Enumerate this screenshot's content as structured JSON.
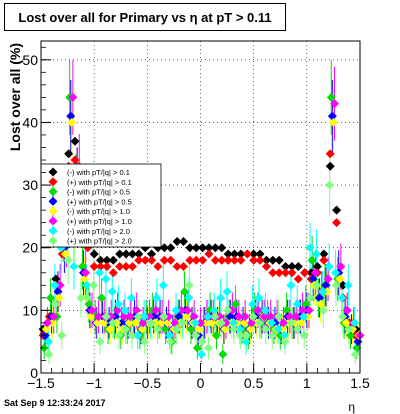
{
  "title": "Lost over all for Primary vs   η at pT > 0.11",
  "timestamp": "Sat Sep  9 12:33:24 2017",
  "chart_data": {
    "type": "scatter",
    "title": "Lost over all for Primary vs   η at pT > 0.11",
    "xlabel": "η",
    "ylabel": "Lost over all (%)",
    "xlim": [
      -1.5,
      1.5
    ],
    "ylim": [
      0,
      53
    ],
    "xticks": [
      -1.5,
      -1,
      -0.5,
      0,
      0.5,
      1,
      1.5
    ],
    "xtick_labels": [
      "−1.5",
      "−1",
      "−0.5",
      "0",
      "0.5",
      "1",
      "1.5"
    ],
    "yticks": [
      0,
      10,
      20,
      30,
      40,
      50
    ],
    "grid": true,
    "legend_position": "upper-left",
    "series": [
      {
        "name": "(-) with pT/|q| > 0.1",
        "color": "#000000",
        "marker": "diamond",
        "errors": false,
        "x": [
          -1.48,
          -1.42,
          -1.36,
          -1.3,
          -1.24,
          -1.18,
          -1.12,
          -1.06,
          -1.0,
          -0.94,
          -0.88,
          -0.82,
          -0.76,
          -0.7,
          -0.64,
          -0.58,
          -0.52,
          -0.46,
          -0.4,
          -0.34,
          -0.28,
          -0.22,
          -0.16,
          -0.1,
          -0.04,
          0.02,
          0.08,
          0.14,
          0.2,
          0.26,
          0.32,
          0.38,
          0.44,
          0.5,
          0.56,
          0.62,
          0.68,
          0.74,
          0.8,
          0.86,
          0.92,
          0.98,
          1.04,
          1.1,
          1.16,
          1.22,
          1.28,
          1.34,
          1.4,
          1.46
        ],
        "y": [
          7,
          9,
          15,
          21,
          35,
          37,
          27,
          22,
          19,
          18,
          18,
          18,
          19,
          19,
          19,
          19,
          20,
          19,
          20,
          20,
          20,
          21,
          21,
          20,
          20,
          20,
          20,
          20,
          20,
          19,
          19,
          19,
          19,
          19,
          19,
          18,
          18,
          18,
          17,
          17,
          17,
          16,
          16,
          17,
          19,
          33,
          26,
          14,
          8,
          7
        ]
      },
      {
        "name": "(+) with pT/|q| > 0.1",
        "color": "#ff0000",
        "marker": "diamond",
        "errors": false,
        "x": [
          -1.48,
          -1.42,
          -1.36,
          -1.3,
          -1.24,
          -1.18,
          -1.12,
          -1.06,
          -1.0,
          -0.94,
          -0.88,
          -0.82,
          -0.76,
          -0.7,
          -0.64,
          -0.58,
          -0.52,
          -0.46,
          -0.4,
          -0.34,
          -0.28,
          -0.22,
          -0.16,
          -0.1,
          -0.04,
          0.02,
          0.08,
          0.14,
          0.2,
          0.26,
          0.32,
          0.38,
          0.44,
          0.5,
          0.56,
          0.62,
          0.68,
          0.74,
          0.8,
          0.86,
          0.92,
          0.98,
          1.04,
          1.1,
          1.16,
          1.22,
          1.28,
          1.34,
          1.4,
          1.46
        ],
        "y": [
          6,
          9,
          14,
          19,
          33,
          34,
          24,
          20,
          17,
          17,
          17,
          16,
          17,
          17,
          17,
          18,
          18,
          18,
          17,
          18,
          18,
          17,
          17,
          18,
          18,
          18,
          19,
          18,
          18,
          18,
          18,
          18,
          19,
          18,
          18,
          17,
          16,
          16,
          16,
          16,
          15,
          16,
          15,
          16,
          18,
          35,
          24,
          12,
          8,
          6
        ]
      },
      {
        "name": "(-) with pT/|q| > 0.5",
        "color": "#00dd00",
        "marker": "diamond",
        "errors": true,
        "x": [
          -1.47,
          -1.41,
          -1.35,
          -1.29,
          -1.23,
          -1.17,
          -1.11,
          -1.05,
          -0.99,
          -0.93,
          -0.87,
          -0.81,
          -0.75,
          -0.69,
          -0.63,
          -0.57,
          -0.51,
          -0.45,
          -0.39,
          -0.33,
          -0.27,
          -0.21,
          -0.15,
          -0.09,
          -0.03,
          0.03,
          0.09,
          0.15,
          0.21,
          0.27,
          0.33,
          0.39,
          0.45,
          0.51,
          0.57,
          0.63,
          0.69,
          0.75,
          0.81,
          0.87,
          0.93,
          0.99,
          1.05,
          1.11,
          1.17,
          1.23,
          1.29,
          1.35,
          1.41,
          1.47
        ],
        "y": [
          4,
          12,
          9,
          22,
          44,
          30,
          17,
          11,
          9,
          12,
          7,
          8,
          6,
          7,
          8,
          6,
          9,
          10,
          8,
          7,
          5,
          9,
          13,
          7,
          4,
          8,
          10,
          6,
          3,
          9,
          11,
          7,
          6,
          10,
          8,
          9,
          7,
          6,
          10,
          8,
          9,
          11,
          18,
          12,
          14,
          44,
          15,
          8,
          6,
          4
        ]
      },
      {
        "name": "(+) with pT/|q| > 0.5",
        "color": "#0000ff",
        "marker": "diamond",
        "errors": true,
        "x": [
          -1.46,
          -1.4,
          -1.34,
          -1.28,
          -1.22,
          -1.16,
          -1.1,
          -1.04,
          -0.98,
          -0.92,
          -0.86,
          -0.8,
          -0.74,
          -0.68,
          -0.62,
          -0.56,
          -0.5,
          -0.44,
          -0.38,
          -0.32,
          -0.26,
          -0.2,
          -0.14,
          -0.08,
          -0.02,
          0.04,
          0.1,
          0.16,
          0.22,
          0.28,
          0.34,
          0.4,
          0.46,
          0.52,
          0.58,
          0.64,
          0.7,
          0.76,
          0.82,
          0.88,
          0.94,
          1.0,
          1.06,
          1.12,
          1.18,
          1.24,
          1.3,
          1.36,
          1.42,
          1.48
        ],
        "y": [
          6,
          9,
          13,
          20,
          41,
          31,
          16,
          10,
          8,
          9,
          8,
          9,
          8,
          8,
          9,
          7,
          8,
          9,
          9,
          8,
          7,
          9,
          10,
          8,
          6,
          8,
          9,
          8,
          7,
          9,
          9,
          8,
          7,
          9,
          9,
          8,
          8,
          7,
          9,
          8,
          9,
          10,
          15,
          12,
          14,
          41,
          16,
          9,
          7,
          5
        ]
      },
      {
        "name": "(-) with pT/|q| > 1.0",
        "color": "#ffff00",
        "marker": "diamond",
        "errors": true,
        "x": [
          -1.45,
          -1.39,
          -1.33,
          -1.27,
          -1.21,
          -1.15,
          -1.09,
          -1.03,
          -0.97,
          -0.91,
          -0.85,
          -0.79,
          -0.73,
          -0.67,
          -0.61,
          -0.55,
          -0.49,
          -0.43,
          -0.37,
          -0.31,
          -0.25,
          -0.19,
          -0.13,
          -0.07,
          -0.01,
          0.05,
          0.11,
          0.17,
          0.23,
          0.29,
          0.35,
          0.41,
          0.47,
          0.53,
          0.59,
          0.65,
          0.71,
          0.77,
          0.83,
          0.89,
          0.95,
          1.01,
          1.07,
          1.13,
          1.19,
          1.25,
          1.31,
          1.37,
          1.43,
          1.49
        ],
        "y": [
          7,
          8,
          12,
          19,
          40,
          29,
          15,
          9,
          8,
          8,
          7,
          8,
          7,
          8,
          8,
          7,
          8,
          8,
          8,
          8,
          7,
          8,
          9,
          8,
          7,
          8,
          8,
          8,
          7,
          8,
          8,
          8,
          7,
          8,
          9,
          8,
          7,
          7,
          8,
          8,
          8,
          9,
          14,
          11,
          13,
          40,
          15,
          8,
          7,
          6
        ]
      },
      {
        "name": "(+) with pT/|q| > 1.0",
        "color": "#ff00ff",
        "marker": "diamond",
        "errors": true,
        "x": [
          -1.44,
          -1.38,
          -1.32,
          -1.26,
          -1.2,
          -1.14,
          -1.08,
          -1.02,
          -0.96,
          -0.9,
          -0.84,
          -0.78,
          -0.72,
          -0.66,
          -0.6,
          -0.54,
          -0.48,
          -0.42,
          -0.36,
          -0.3,
          -0.24,
          -0.18,
          -0.12,
          -0.06,
          0.0,
          0.06,
          0.12,
          0.18,
          0.24,
          0.3,
          0.36,
          0.42,
          0.48,
          0.54,
          0.6,
          0.66,
          0.72,
          0.78,
          0.84,
          0.9,
          0.96,
          1.02,
          1.08,
          1.14,
          1.2,
          1.26,
          1.32,
          1.38,
          1.44,
          1.5
        ],
        "y": [
          8,
          9,
          14,
          21,
          44,
          33,
          16,
          10,
          9,
          9,
          9,
          10,
          9,
          9,
          10,
          8,
          9,
          10,
          9,
          9,
          8,
          10,
          10,
          9,
          8,
          9,
          9,
          9,
          8,
          10,
          9,
          9,
          8,
          10,
          9,
          9,
          9,
          8,
          9,
          9,
          10,
          10,
          16,
          13,
          15,
          43,
          17,
          10,
          8,
          6
        ]
      },
      {
        "name": "(-) with pT/|q| > 2.0",
        "color": "#00ffff",
        "marker": "diamond",
        "errors": true,
        "x": [
          -1.43,
          -1.37,
          -1.31,
          -1.25,
          -1.19,
          -1.13,
          -1.07,
          -1.01,
          -0.95,
          -0.89,
          -0.83,
          -0.77,
          -0.71,
          -0.65,
          -0.59,
          -0.53,
          -0.47,
          -0.41,
          -0.35,
          -0.29,
          -0.23,
          -0.17,
          -0.11,
          -0.05,
          0.01,
          0.07,
          0.13,
          0.19,
          0.25,
          0.31,
          0.37,
          0.43,
          0.49,
          0.55,
          0.61,
          0.67,
          0.73,
          0.79,
          0.85,
          0.91,
          0.97,
          1.03,
          1.09,
          1.15,
          1.21,
          1.27,
          1.33,
          1.39,
          1.45
        ],
        "y": [
          5,
          14,
          20,
          23,
          17,
          26,
          14,
          24,
          16,
          15,
          13,
          11,
          10,
          12,
          6,
          9,
          8,
          12,
          14,
          6,
          10,
          8,
          12,
          8,
          3,
          9,
          10,
          12,
          13,
          8,
          7,
          5,
          11,
          12,
          10,
          8,
          7,
          6,
          14,
          11,
          9,
          20,
          19,
          13,
          17,
          16,
          12,
          14,
          8
        ]
      },
      {
        "name": "(+) with pT/|q| > 2.0",
        "color": "#7fff7f",
        "marker": "diamond",
        "errors": true,
        "x": [
          -1.425,
          -1.365,
          -1.305,
          -1.245,
          -1.185,
          -1.125,
          -1.065,
          -1.005,
          -0.945,
          -0.885,
          -0.825,
          -0.765,
          -0.705,
          -0.645,
          -0.585,
          -0.525,
          -0.465,
          -0.405,
          -0.345,
          -0.285,
          -0.225,
          -0.165,
          -0.105,
          -0.045,
          0.015,
          0.075,
          0.135,
          0.195,
          0.255,
          0.315,
          0.375,
          0.435,
          0.495,
          0.555,
          0.615,
          0.675,
          0.735,
          0.795,
          0.855,
          0.915,
          0.975,
          1.035,
          1.095,
          1.155,
          1.215,
          1.275,
          1.335,
          1.395,
          1.455
        ],
        "y": [
          3,
          11,
          6,
          18,
          22,
          12,
          12,
          14,
          5,
          9,
          8,
          6,
          7,
          6,
          9,
          5,
          8,
          7,
          9,
          5,
          7,
          8,
          14,
          6,
          5,
          4,
          9,
          8,
          10,
          7,
          6,
          6,
          9,
          8,
          7,
          6,
          9,
          5,
          8,
          7,
          6,
          12,
          14,
          10,
          30,
          14,
          9,
          7,
          3
        ]
      }
    ]
  }
}
